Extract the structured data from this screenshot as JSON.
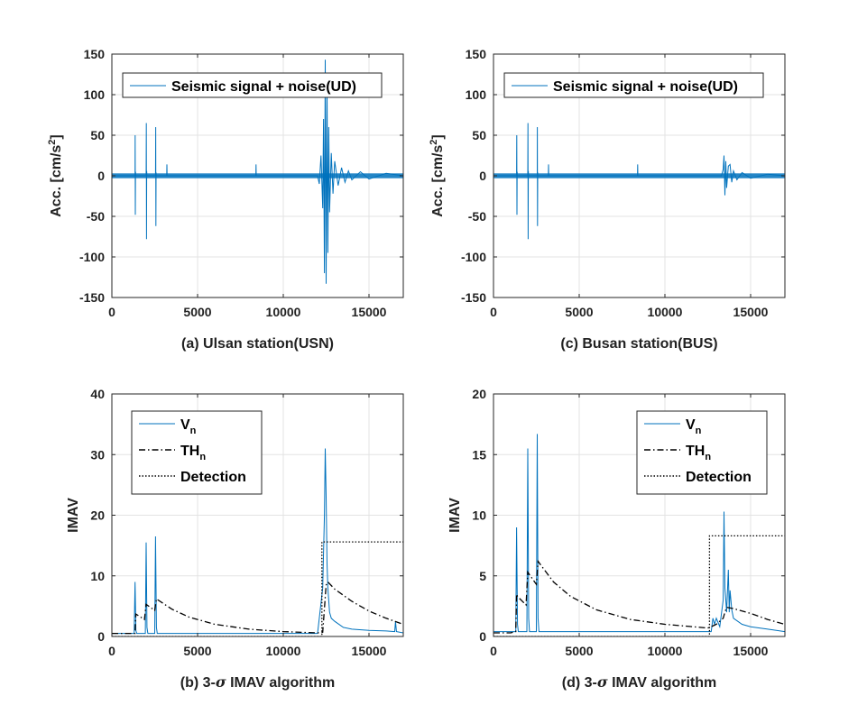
{
  "chart_data": [
    {
      "id": "a",
      "type": "line",
      "xlabel_prefix": "(a) Ulsan station(USN)",
      "xlabel_sigma": "",
      "xlabel_suffix": "",
      "ylabel_main": "Acc. [cm/s",
      "ylabel_sup": "2",
      "ylabel_end": "]",
      "xlim": [
        0,
        17000
      ],
      "ylim": [
        -150,
        150
      ],
      "xticks": [
        "0",
        "5000",
        "10000",
        "15000"
      ],
      "yticks": [
        "-150",
        "-100",
        "-50",
        "0",
        "50",
        "100",
        "150"
      ],
      "grid": true,
      "legend_position": "top-left",
      "series": [
        {
          "name": "Seismic signal + noise(UD)",
          "color": "#0072BD",
          "style": "solid",
          "x": [
            0,
            1350,
            1360,
            1370,
            1380,
            1390,
            2000,
            2010,
            2020,
            2030,
            2040,
            2550,
            2560,
            2570,
            2580,
            2590,
            3200,
            3210,
            3220,
            8400,
            8410,
            8420,
            12000,
            12100,
            12200,
            12300,
            12350,
            12400,
            12450,
            12500,
            12550,
            12600,
            12650,
            12700,
            12800,
            12900,
            13000,
            13200,
            13400,
            13600,
            13800,
            14000,
            14500,
            15000,
            16000,
            17000
          ],
          "y": [
            0,
            0,
            50,
            -48,
            5,
            0,
            0,
            65,
            -78,
            6,
            0,
            0,
            60,
            -62,
            4,
            0,
            0,
            14,
            0,
            0,
            14,
            0,
            0,
            -10,
            25,
            -40,
            70,
            -120,
            143,
            -133,
            110,
            -95,
            60,
            -45,
            28,
            -22,
            18,
            -12,
            10,
            -8,
            6,
            -5,
            5,
            -4,
            3,
            0
          ]
        }
      ]
    },
    {
      "id": "b",
      "type": "line",
      "xlabel_prefix": "(b) 3-",
      "xlabel_sigma": "σ",
      "xlabel_suffix": " IMAV algorithm",
      "ylabel_main": "IMAV",
      "ylabel_sup": "",
      "ylabel_end": "",
      "xlim": [
        0,
        17000
      ],
      "ylim": [
        0,
        40
      ],
      "xticks": [
        "0",
        "5000",
        "10000",
        "15000"
      ],
      "yticks": [
        "0",
        "10",
        "20",
        "30",
        "40"
      ],
      "grid": true,
      "legend_position": "top-left",
      "series": [
        {
          "name": "V",
          "sub": "n",
          "color": "#0072BD",
          "style": "solid",
          "x": [
            0,
            1300,
            1350,
            1400,
            1450,
            1950,
            2000,
            2050,
            2100,
            2500,
            2550,
            2600,
            2650,
            3000,
            8000,
            12000,
            12300,
            12400,
            12450,
            12500,
            12550,
            12600,
            12700,
            12800,
            13000,
            13500,
            14000,
            15000,
            16000,
            16500,
            16550,
            16600,
            17000
          ],
          "y": [
            0.5,
            0.5,
            9,
            1,
            0.5,
            0.5,
            15.5,
            1.5,
            0.5,
            0.5,
            16.5,
            1.5,
            0.5,
            0.5,
            0.5,
            0.5,
            8,
            20,
            31,
            23,
            12,
            8,
            4,
            3,
            2.5,
            1.5,
            1.2,
            1,
            0.9,
            0.8,
            2.5,
            0.8,
            0.6
          ]
        },
        {
          "name": "TH",
          "sub": "n",
          "color": "#000000",
          "style": "dashdot",
          "x": [
            0,
            1350,
            1400,
            1900,
            2000,
            2050,
            2500,
            2600,
            2700,
            3500,
            4500,
            6000,
            8000,
            10000,
            12000,
            12300,
            12500,
            12600,
            13000,
            14000,
            15000,
            16000,
            17000
          ],
          "y": [
            0.5,
            0.5,
            3.7,
            2.8,
            5.3,
            5.2,
            4.3,
            6.2,
            6,
            4.5,
            3.2,
            2.0,
            1.2,
            0.8,
            0.6,
            0.7,
            8.5,
            9,
            7.8,
            5.8,
            4.2,
            3.0,
            2.0
          ]
        },
        {
          "name": "Detection",
          "sub": "",
          "color": "#000000",
          "style": "dotted",
          "x": [
            0,
            12250,
            12250,
            17000
          ],
          "y": [
            0,
            0,
            15.6,
            15.6
          ]
        }
      ]
    },
    {
      "id": "c",
      "type": "line",
      "xlabel_prefix": "(c) Busan station(BUS)",
      "xlabel_sigma": "",
      "xlabel_suffix": "",
      "ylabel_main": "Acc. [cm/s",
      "ylabel_sup": "2",
      "ylabel_end": "]",
      "xlim": [
        0,
        17000
      ],
      "ylim": [
        -150,
        150
      ],
      "xticks": [
        "0",
        "5000",
        "10000",
        "15000"
      ],
      "yticks": [
        "-150",
        "-100",
        "-50",
        "0",
        "50",
        "100",
        "150"
      ],
      "grid": true,
      "legend_position": "top-right",
      "series": [
        {
          "name": "Seismic signal + noise(UD)",
          "color": "#0072BD",
          "style": "solid",
          "x": [
            0,
            1350,
            1360,
            1370,
            1380,
            1390,
            2000,
            2010,
            2020,
            2030,
            2040,
            2550,
            2560,
            2570,
            2580,
            2590,
            3200,
            3210,
            3220,
            8400,
            8410,
            8420,
            13300,
            13400,
            13450,
            13500,
            13550,
            13600,
            13700,
            13800,
            13900,
            14000,
            14200,
            14500,
            15000,
            16000,
            17000
          ],
          "y": [
            0,
            0,
            50,
            -48,
            5,
            0,
            0,
            65,
            -78,
            6,
            0,
            0,
            60,
            -62,
            4,
            0,
            0,
            14,
            0,
            0,
            14,
            0,
            0,
            8,
            25,
            -24,
            18,
            -15,
            12,
            14,
            -8,
            6,
            -5,
            4,
            -3,
            2,
            0
          ]
        }
      ]
    },
    {
      "id": "d",
      "type": "line",
      "xlabel_prefix": "(d) 3-",
      "xlabel_sigma": "σ",
      "xlabel_suffix": " IMAV algorithm",
      "ylabel_main": "IMAV",
      "ylabel_sup": "",
      "ylabel_end": "",
      "xlim": [
        0,
        17000
      ],
      "ylim": [
        0,
        20
      ],
      "xticks": [
        "0",
        "5000",
        "10000",
        "15000"
      ],
      "yticks": [
        "0",
        "5",
        "10",
        "15",
        "20"
      ],
      "grid": true,
      "legend_position": "top-right",
      "series": [
        {
          "name": "V",
          "sub": "n",
          "color": "#0072BD",
          "style": "solid",
          "x": [
            0,
            1300,
            1350,
            1400,
            1450,
            1950,
            2000,
            2050,
            2100,
            2500,
            2550,
            2600,
            2650,
            3000,
            8000,
            12700,
            12800,
            12900,
            13000,
            13200,
            13400,
            13450,
            13500,
            13550,
            13600,
            13700,
            13750,
            13800,
            13900,
            14000,
            14500,
            15000,
            16000,
            17000
          ],
          "y": [
            0.4,
            0.4,
            9,
            1,
            0.4,
            0.4,
            15.5,
            1.5,
            0.4,
            0.4,
            16.7,
            1.5,
            0.4,
            0.4,
            0.4,
            0.4,
            1.5,
            1.0,
            1.5,
            0.8,
            3,
            10.3,
            4,
            3,
            2,
            5.5,
            2,
            3.8,
            2.2,
            1.5,
            1.0,
            0.8,
            0.6,
            0.4
          ]
        },
        {
          "name": "TH",
          "sub": "n",
          "color": "#000000",
          "style": "dashdot",
          "x": [
            0,
            1000,
            1300,
            1350,
            1400,
            1900,
            2000,
            2050,
            2500,
            2600,
            2700,
            3500,
            4500,
            6000,
            8000,
            10000,
            12500,
            12700,
            13000,
            13400,
            13500,
            13600,
            14000,
            15000,
            16000,
            17000
          ],
          "y": [
            0.3,
            0.3,
            0.4,
            3.5,
            3.3,
            2.6,
            5.3,
            5.2,
            4.3,
            6.2,
            6.0,
            4.5,
            3.3,
            2.2,
            1.4,
            1.0,
            0.7,
            0.8,
            1.0,
            1.5,
            2.0,
            2.4,
            2.3,
            1.9,
            1.4,
            1.0
          ]
        },
        {
          "name": "Detection",
          "sub": "",
          "color": "#000000",
          "style": "dotted",
          "x": [
            0,
            12600,
            12600,
            17000
          ],
          "y": [
            0,
            0,
            8.3,
            8.3
          ]
        }
      ]
    }
  ]
}
